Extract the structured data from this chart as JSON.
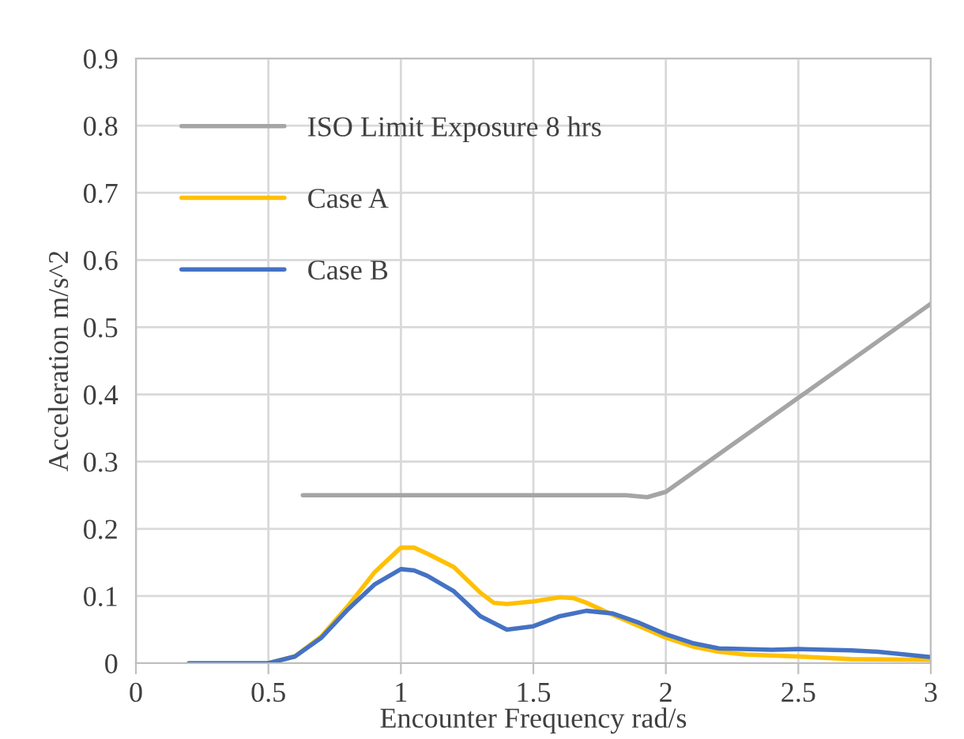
{
  "chart_data": {
    "type": "line",
    "xlabel": "Encounter Frequency rad/s",
    "ylabel": "Acceleration m/s^2",
    "xlim": [
      0,
      3
    ],
    "xticks": [
      0,
      0.5,
      1,
      1.5,
      2,
      2.5,
      3
    ],
    "ylim": [
      0,
      0.9
    ],
    "yticks": [
      0,
      0.1,
      0.2,
      0.3,
      0.4,
      0.5,
      0.6,
      0.7,
      0.8,
      0.9
    ],
    "grid": true,
    "legend": "top left",
    "marker": "none",
    "line_style": "solid",
    "series": [
      {
        "name": "ISO Limit Exposure 8 hrs",
        "color": "#a5a5a5",
        "x": [
          0.63,
          1.0,
          1.5,
          1.85,
          1.93,
          2.0,
          2.5,
          3.0
        ],
        "values": [
          0.25,
          0.25,
          0.25,
          0.25,
          0.247,
          0.255,
          0.395,
          0.535
        ]
      },
      {
        "name": "Case A",
        "color": "#ffc000",
        "x": [
          0.5,
          0.6,
          0.7,
          0.8,
          0.9,
          1.0,
          1.05,
          1.1,
          1.2,
          1.3,
          1.35,
          1.4,
          1.5,
          1.6,
          1.65,
          1.7,
          1.8,
          1.9,
          2.0,
          2.1,
          2.2,
          2.3,
          2.5,
          2.7,
          3.0
        ],
        "values": [
          0,
          0.01,
          0.04,
          0.085,
          0.135,
          0.172,
          0.172,
          0.163,
          0.143,
          0.105,
          0.09,
          0.088,
          0.092,
          0.098,
          0.097,
          0.09,
          0.072,
          0.055,
          0.038,
          0.025,
          0.017,
          0.013,
          0.01,
          0.006,
          0.005
        ]
      },
      {
        "name": "Case B",
        "color": "#4472c4",
        "x": [
          0.2,
          0.4,
          0.5,
          0.6,
          0.7,
          0.8,
          0.9,
          1.0,
          1.05,
          1.1,
          1.2,
          1.3,
          1.4,
          1.5,
          1.6,
          1.7,
          1.8,
          1.9,
          2.0,
          2.1,
          2.2,
          2.4,
          2.5,
          2.7,
          2.8,
          3.0
        ],
        "values": [
          0,
          0,
          0,
          0.01,
          0.038,
          0.08,
          0.117,
          0.14,
          0.138,
          0.13,
          0.107,
          0.07,
          0.05,
          0.055,
          0.07,
          0.078,
          0.074,
          0.06,
          0.043,
          0.03,
          0.022,
          0.02,
          0.021,
          0.019,
          0.017,
          0.009
        ]
      }
    ]
  }
}
